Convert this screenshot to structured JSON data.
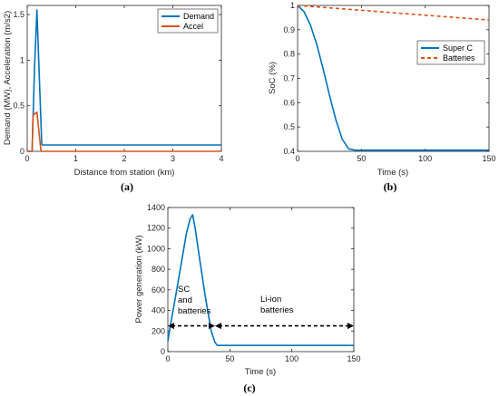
{
  "colors": {
    "blue": "#0072BD",
    "orange": "#D95319",
    "axis": "#262626"
  },
  "chart_data": [
    {
      "id": "a",
      "type": "line",
      "caption": "(a)",
      "xlabel": "Distance from station (km)",
      "ylabel": "Demand (MW), Acceleration (m/s2)",
      "xlim": [
        0,
        4
      ],
      "ylim": [
        0,
        1.6
      ],
      "xticks": [
        0,
        1,
        2,
        3,
        4
      ],
      "yticks": [
        0,
        0.5,
        1,
        1.5
      ],
      "legend_position": "top-right",
      "series": [
        {
          "name": "Demand",
          "color": "#0072BD",
          "x": [
            0,
            0.1,
            0.15,
            0.2,
            0.25,
            0.3,
            0.31,
            4
          ],
          "y": [
            0,
            0,
            0.9,
            1.55,
            0.8,
            0.08,
            0.07,
            0.07
          ]
        },
        {
          "name": "Accel",
          "color": "#D95319",
          "x": [
            0,
            0.1,
            0.12,
            0.18,
            0.2,
            0.28,
            0.29,
            4
          ],
          "y": [
            0,
            0,
            0.4,
            0.42,
            0.43,
            0.02,
            0,
            0
          ]
        }
      ]
    },
    {
      "id": "b",
      "type": "line",
      "caption": "(b)",
      "xlabel": "Time (s)",
      "ylabel": "SoC (%)",
      "xlim": [
        0,
        150
      ],
      "ylim": [
        0.4,
        1
      ],
      "xticks": [
        0,
        50,
        100,
        150
      ],
      "yticks": [
        0.4,
        0.5,
        0.6,
        0.7,
        0.8,
        0.9,
        1
      ],
      "legend_position": "middle-right",
      "series": [
        {
          "name": "Super C",
          "color": "#0072BD",
          "dash": "",
          "x": [
            0,
            5,
            10,
            15,
            20,
            25,
            30,
            35,
            40,
            45,
            150
          ],
          "y": [
            1,
            0.975,
            0.92,
            0.84,
            0.74,
            0.63,
            0.53,
            0.45,
            0.41,
            0.405,
            0.405
          ]
        },
        {
          "name": "Batteries",
          "color": "#D95319",
          "dash": "4,3",
          "x": [
            0,
            150
          ],
          "y": [
            1,
            0.94
          ]
        }
      ]
    },
    {
      "id": "c",
      "type": "line",
      "caption": "(c)",
      "xlabel": "Time (s)",
      "ylabel": "Power generation (kW)",
      "xlim": [
        0,
        150
      ],
      "ylim": [
        0,
        1400
      ],
      "xticks": [
        0,
        50,
        100,
        150
      ],
      "yticks": [
        0,
        200,
        400,
        600,
        800,
        1000,
        1200,
        1400
      ],
      "series": [
        {
          "name": "",
          "color": "#0072BD",
          "x": [
            0,
            2,
            5,
            10,
            15,
            18,
            20,
            22,
            25,
            30,
            35,
            38,
            40,
            150
          ],
          "y": [
            100,
            250,
            450,
            800,
            1150,
            1290,
            1330,
            1200,
            950,
            550,
            200,
            90,
            60,
            60
          ]
        }
      ],
      "annotations": {
        "left_label": [
          "SC",
          "and",
          "batteries"
        ],
        "right_label": [
          "Li-ion",
          "batteries"
        ],
        "arrow_y": 250,
        "left_span": [
          0,
          38
        ],
        "right_span": [
          38,
          150
        ]
      }
    }
  ]
}
